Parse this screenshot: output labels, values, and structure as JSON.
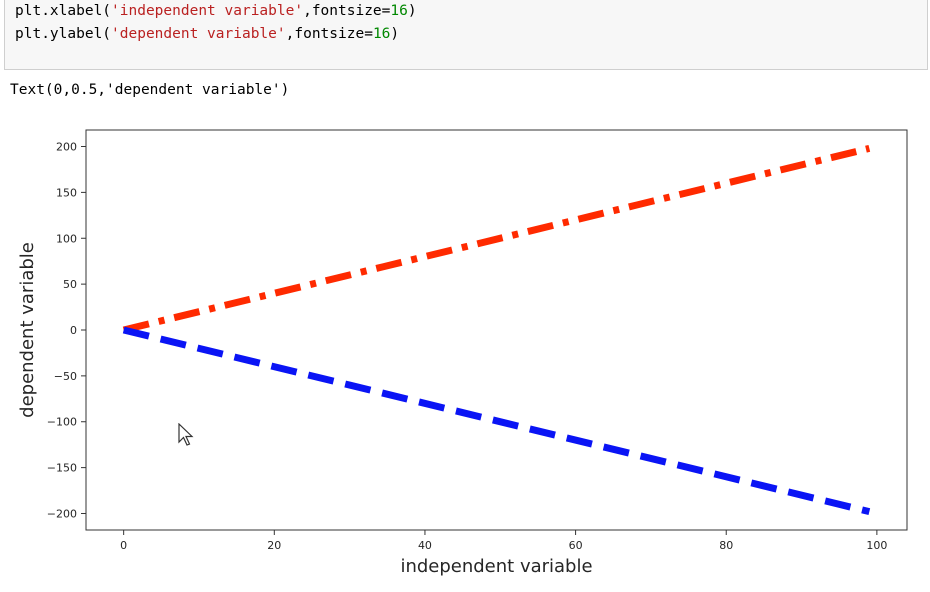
{
  "code": {
    "lines": [
      {
        "parts": [
          {
            "t": "plt.xlabel(",
            "c": "plain"
          },
          {
            "t": "'independent variable'",
            "c": "str"
          },
          {
            "t": ",fontsize=",
            "c": "plain"
          },
          {
            "t": "16",
            "c": "num"
          },
          {
            "t": ")",
            "c": "plain"
          }
        ]
      },
      {
        "parts": [
          {
            "t": "plt.ylabel(",
            "c": "plain"
          },
          {
            "t": "'dependent variable'",
            "c": "str"
          },
          {
            "t": ",fontsize=",
            "c": "plain"
          },
          {
            "t": "16",
            "c": "num"
          },
          {
            "t": ")",
            "c": "plain"
          }
        ]
      }
    ]
  },
  "output": {
    "text": "Text(0,0.5,'dependent variable')"
  },
  "chart_data": {
    "type": "line",
    "title": "",
    "xlabel": "independent variable",
    "ylabel": "dependent variable",
    "xlim": [
      -5,
      104
    ],
    "ylim": [
      -218,
      218
    ],
    "xticks": [
      0,
      20,
      40,
      60,
      80,
      100
    ],
    "yticks": [
      200,
      150,
      100,
      50,
      0,
      -50,
      -100,
      -150,
      -200
    ],
    "ytick_labels": [
      "200",
      "150",
      "100",
      "50",
      "0",
      "−50",
      "−100",
      "−150",
      "−200"
    ],
    "grid": false,
    "series": [
      {
        "x": [
          0,
          99
        ],
        "y": [
          0,
          198
        ],
        "color": "#ff2a00",
        "linestyle": "dashdot"
      },
      {
        "x": [
          0,
          99
        ],
        "y": [
          0,
          -198
        ],
        "color": "#0a14f5",
        "linestyle": "dashed"
      }
    ]
  },
  "cursor": {
    "icon": "pointer-arrow-icon"
  }
}
